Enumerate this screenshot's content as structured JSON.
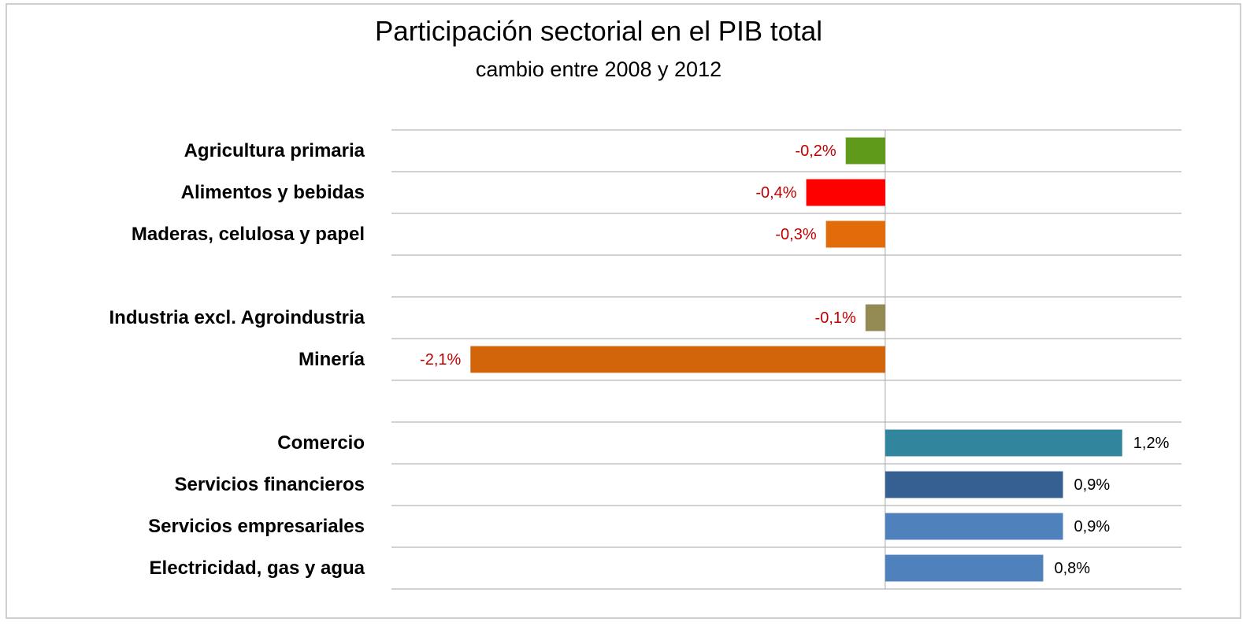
{
  "chart_data": {
    "type": "hbar",
    "title": "Participación sectorial en el PIB total",
    "subtitle": "cambio entre 2008 y 2012",
    "categories": [
      "Agricultura primaria",
      "Alimentos y bebidas",
      "Maderas, celulosa y papel",
      null,
      "Industria excl. Agroindustria",
      "Minería",
      null,
      "Comercio",
      "Servicios financieros",
      "Servicios empresariales",
      "Electricidad, gas y agua"
    ],
    "values": [
      -0.2,
      -0.4,
      -0.3,
      null,
      -0.1,
      -2.1,
      null,
      1.2,
      0.9,
      0.9,
      0.8
    ],
    "value_labels": [
      "-0,2%",
      "-0,4%",
      "-0,3%",
      null,
      "-0,1%",
      "-2,1%",
      null,
      "1,2%",
      "0,9%",
      "0,9%",
      "0,8%"
    ],
    "colors": [
      "#5f9a1a",
      "#ff0000",
      "#e36c0a",
      null,
      "#948a54",
      "#d2640a",
      null,
      "#31859c",
      "#366092",
      "#4f81bd",
      "#4f81bd"
    ],
    "xlim": [
      -2.5,
      1.5
    ],
    "grid": true
  }
}
